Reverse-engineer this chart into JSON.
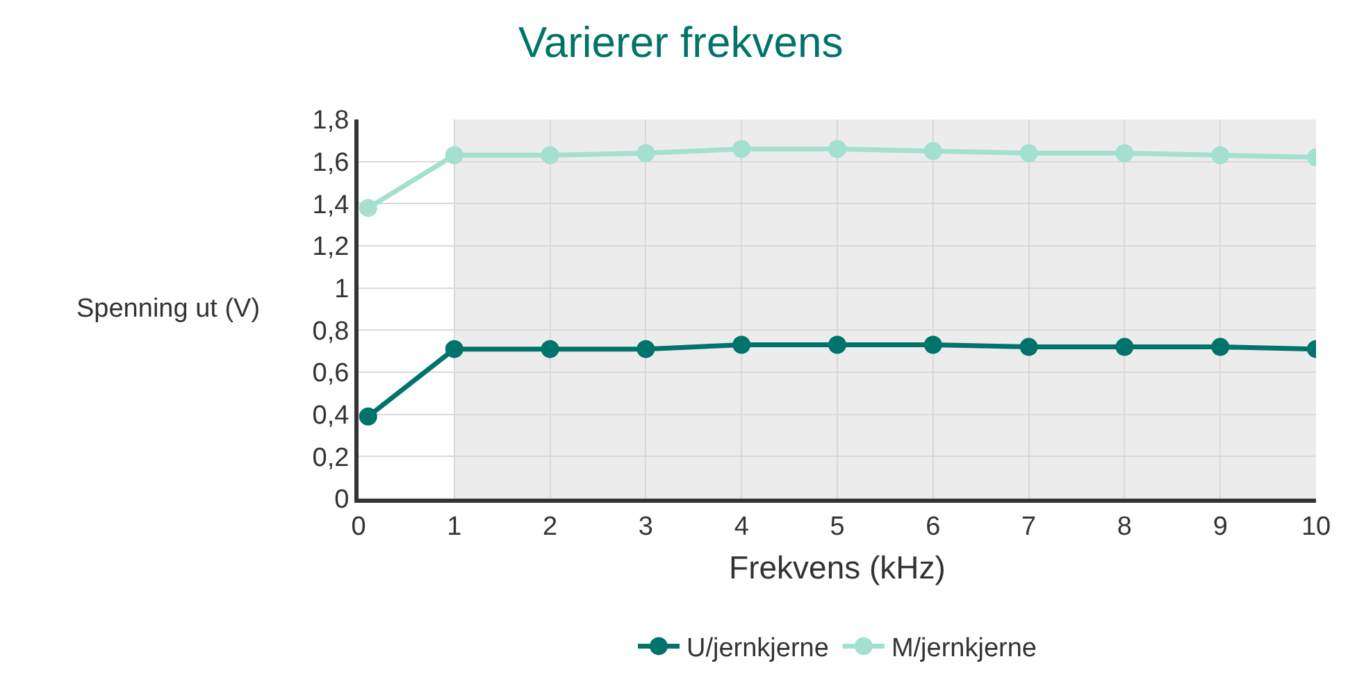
{
  "chart_data": {
    "type": "line",
    "title": "Varierer frekvens",
    "xlabel": "Frekvens (kHz)",
    "ylabel": "Spenning ut (V)",
    "x": [
      0.1,
      1,
      2,
      3,
      4,
      5,
      6,
      7,
      8,
      9,
      10
    ],
    "series": [
      {
        "name": "U/jernkjerne",
        "color": "#00736b",
        "values": [
          0.39,
          0.71,
          0.71,
          0.71,
          0.73,
          0.73,
          0.73,
          0.72,
          0.72,
          0.72,
          0.71
        ]
      },
      {
        "name": "M/jernkjerne",
        "color": "#a3e0d0",
        "values": [
          1.38,
          1.63,
          1.63,
          1.64,
          1.66,
          1.66,
          1.65,
          1.64,
          1.64,
          1.63,
          1.62
        ]
      }
    ],
    "xlim": [
      0,
      10
    ],
    "xticks": [
      0,
      1,
      2,
      3,
      4,
      5,
      6,
      7,
      8,
      9,
      10
    ],
    "ylim": [
      0,
      1.8
    ],
    "yticks": [
      {
        "value": 0,
        "label": "0"
      },
      {
        "value": 0.2,
        "label": "0,2"
      },
      {
        "value": 0.4,
        "label": "0,4"
      },
      {
        "value": 0.6,
        "label": "0,6"
      },
      {
        "value": 0.8,
        "label": "0,8"
      },
      {
        "value": 1,
        "label": "1"
      },
      {
        "value": 1.2,
        "label": "1,2"
      },
      {
        "value": 1.4,
        "label": "1,4"
      },
      {
        "value": 1.6,
        "label": "1,6"
      },
      {
        "value": 1.8,
        "label": "1,8"
      }
    ],
    "bands": [
      {
        "axis": "x",
        "from": 1,
        "to": 10,
        "color": "#ececec"
      }
    ],
    "grid": true,
    "legend": "bottom",
    "marker": "circle",
    "line_style": "solid"
  }
}
